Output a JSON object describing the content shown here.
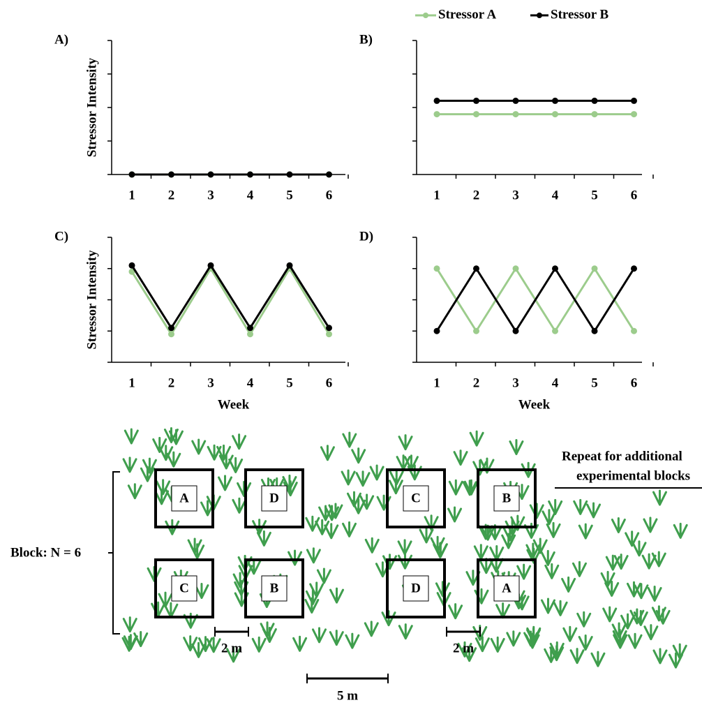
{
  "chart_data": [
    {
      "type": "line",
      "title": "A)",
      "ylabel": "Stressor Intensity",
      "categories": [
        "1",
        "2",
        "3",
        "4",
        "5",
        "6"
      ],
      "series": [
        {
          "color": "#9ccc8c",
          "values": [
            0,
            0,
            0,
            0,
            0,
            0
          ]
        },
        {
          "color": "#000000",
          "values": [
            0,
            0,
            0,
            0,
            0,
            0
          ]
        }
      ],
      "ylim": [
        0,
        4
      ],
      "yticks": [
        0,
        1,
        2,
        3,
        4
      ]
    },
    {
      "type": "line",
      "title": "B)",
      "categories": [
        "1",
        "2",
        "3",
        "4",
        "5",
        "6"
      ],
      "series": [
        {
          "name": "Stressor A",
          "color": "#9ccc8c",
          "values": [
            1.8,
            1.8,
            1.8,
            1.8,
            1.8,
            1.8
          ]
        },
        {
          "name": "Stressor B",
          "color": "#000000",
          "values": [
            2.2,
            2.2,
            2.2,
            2.2,
            2.2,
            2.2
          ]
        }
      ],
      "ylim": [
        0,
        4
      ],
      "yticks": [
        0,
        1,
        2,
        3,
        4
      ]
    },
    {
      "type": "line",
      "title": "C)",
      "ylabel": "Stressor Intensity",
      "xlabel": "Week",
      "categories": [
        "1",
        "2",
        "3",
        "4",
        "5",
        "6"
      ],
      "series": [
        {
          "color": "#9ccc8c",
          "values": [
            2.9,
            0.9,
            3.0,
            0.9,
            3.0,
            0.9
          ]
        },
        {
          "color": "#000000",
          "values": [
            3.1,
            1.1,
            3.1,
            1.1,
            3.1,
            1.1
          ]
        }
      ],
      "ylim": [
        0,
        4
      ],
      "yticks": [
        0,
        1,
        2,
        3,
        4
      ]
    },
    {
      "type": "line",
      "title": "D)",
      "xlabel": "Week",
      "categories": [
        "1",
        "2",
        "3",
        "4",
        "5",
        "6"
      ],
      "series": [
        {
          "color": "#9ccc8c",
          "values": [
            3,
            1,
            3,
            1,
            3,
            1
          ]
        },
        {
          "color": "#000000",
          "values": [
            1,
            3,
            1,
            3,
            1,
            3
          ]
        }
      ],
      "ylim": [
        0,
        4
      ],
      "yticks": [
        0,
        1,
        2,
        3,
        4
      ]
    }
  ],
  "diagram": {
    "block_label": "Block: N = 6",
    "plots": [
      [
        "A",
        "D",
        "C",
        "B"
      ],
      [
        "C",
        "B",
        "D",
        "A"
      ]
    ],
    "scale_bars": [
      "2 m",
      "2 m",
      "5 m"
    ],
    "note": [
      "Repeat for additional",
      "experimental blocks"
    ]
  }
}
